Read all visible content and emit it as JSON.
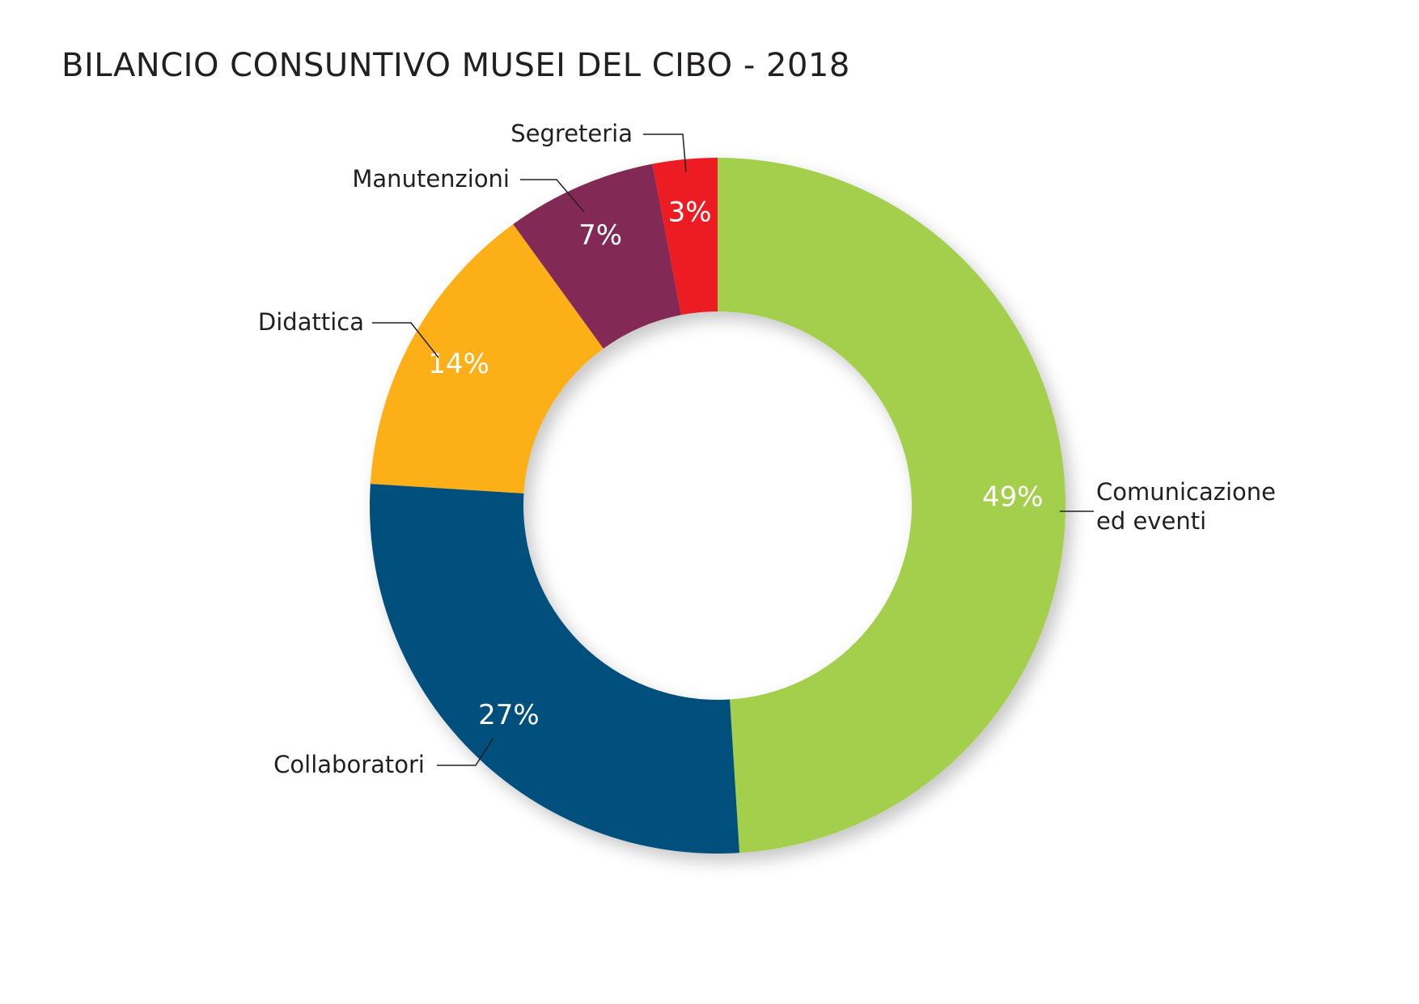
{
  "chart_data": {
    "type": "pie",
    "variant": "donut",
    "title": "BILANCIO CONSUNTIVO MUSEI DEL CIBO - 2018",
    "categories": [
      "Comunicazione ed eventi",
      "Collaboratori",
      "Didattica",
      "Manutenzioni",
      "Segreteria"
    ],
    "category_lines": [
      [
        "Comunicazione",
        "ed eventi"
      ],
      [
        "Collaboratori"
      ],
      [
        "Didattica"
      ],
      [
        "Manutenzioni"
      ],
      [
        "Segreteria"
      ]
    ],
    "values": [
      49,
      27,
      14,
      7,
      3
    ],
    "value_labels": [
      "49%",
      "27%",
      "14%",
      "7%",
      "3%"
    ],
    "colors": [
      "#a3cf4d",
      "#05507b",
      "#fcaf17",
      "#822a54",
      "#ed1c24"
    ],
    "start": "top",
    "direction": "clockwise",
    "legend": "none (category labels with leader lines beside slices)"
  }
}
